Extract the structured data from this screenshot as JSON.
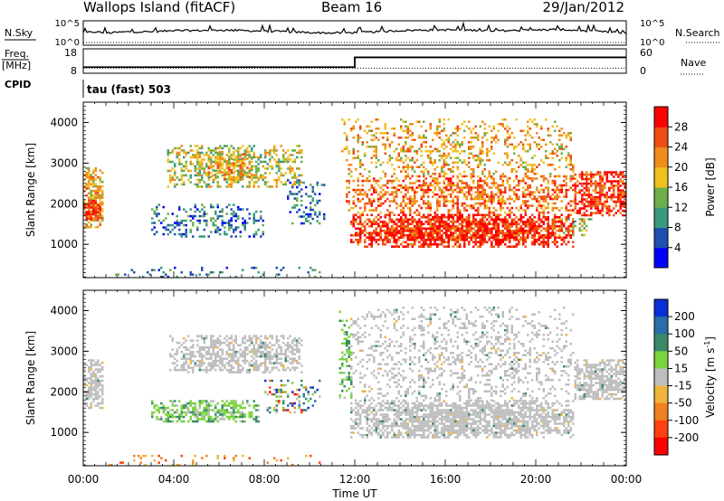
{
  "header": {
    "station": "Wallops Island (fitACF)",
    "beam": "Beam 16",
    "date": "29/Jan/2012"
  },
  "strip_labels": {
    "nsky": "N.Sky",
    "nsearch": "N.Search",
    "freq_top": "Freq.",
    "freq_unit": "[MHz]",
    "cpid": "CPID",
    "nave": "Nave",
    "cpid_value": "tau (fast) 503"
  },
  "strip_ticks": {
    "noise_left": [
      "10^5",
      "10^0"
    ],
    "noise_right": [
      "10^5",
      "10^0"
    ],
    "freq_left": [
      "18",
      "8"
    ],
    "freq_right": [
      "60",
      "0"
    ]
  },
  "chart_data": [
    {
      "type": "line",
      "name": "noise-strip",
      "series": [
        {
          "name": "N.Sky",
          "style": "solid",
          "level_t": [
            0,
            0.5,
            1,
            2,
            3,
            4,
            5,
            6,
            7,
            8,
            9,
            10,
            11,
            12,
            13,
            14,
            15,
            16,
            17,
            18,
            19,
            20,
            21,
            22,
            23,
            24
          ],
          "level": [
            0.5,
            0.55,
            0.5,
            0.55,
            0.55,
            0.6,
            0.6,
            0.62,
            0.6,
            0.58,
            0.55,
            0.52,
            0.5,
            0.52,
            0.55,
            0.6,
            0.62,
            0.63,
            0.62,
            0.6,
            0.6,
            0.62,
            0.65,
            0.6,
            0.55,
            0.5
          ]
        },
        {
          "name": "N.Search",
          "style": "dotted"
        }
      ]
    },
    {
      "type": "line",
      "name": "frequency-nave-strip",
      "series": [
        {
          "name": "Freq",
          "x": [
            0,
            12,
            12,
            24
          ],
          "y": [
            10.5,
            10.5,
            14.5,
            14.5
          ],
          "ylim": [
            8,
            18
          ]
        },
        {
          "name": "Nave",
          "style": "dotted",
          "x": [
            0,
            24
          ],
          "y": [
            8,
            8
          ],
          "ylim": [
            0,
            60
          ]
        }
      ]
    },
    {
      "type": "heatmap",
      "name": "power-panel",
      "xlabel": "",
      "ylabel": "Slant Range [km]",
      "xlim": [
        0,
        24
      ],
      "ylim": [
        180,
        4500
      ],
      "yticks": [
        1000,
        2000,
        3000,
        4000
      ],
      "colorbar": {
        "label": "Power [dB]",
        "range": [
          0,
          32
        ],
        "ticks": [
          4,
          8,
          12,
          16,
          20,
          24,
          28
        ],
        "colors": [
          "#0000ff",
          "#1f4fb0",
          "#3a9a7e",
          "#6dae4a",
          "#f0c020",
          "#f08c1a",
          "#ee4d14",
          "#ff0000"
        ]
      },
      "regions": [
        {
          "t0": 0.0,
          "t1": 0.9,
          "r0": 1450,
          "r1": 2900,
          "value": 20,
          "density": 0.8
        },
        {
          "t0": 0.0,
          "t1": 0.8,
          "r0": 1600,
          "r1": 2100,
          "value": 28,
          "density": 0.9
        },
        {
          "t0": 3.7,
          "t1": 9.7,
          "r0": 2400,
          "r1": 3450,
          "value": 14,
          "density": 0.55
        },
        {
          "t0": 5.5,
          "t1": 7.5,
          "r0": 2600,
          "r1": 3300,
          "value": 20,
          "density": 0.6
        },
        {
          "t0": 3.0,
          "t1": 8.0,
          "r0": 1200,
          "r1": 2000,
          "value": 9,
          "density": 0.35
        },
        {
          "t0": 9.0,
          "t1": 10.7,
          "r0": 1500,
          "r1": 2600,
          "value": 8,
          "density": 0.3
        },
        {
          "t0": 1.0,
          "t1": 10.5,
          "r0": 200,
          "r1": 450,
          "value": 9,
          "density": 0.12
        },
        {
          "t0": 11.4,
          "t1": 21.7,
          "r0": 2600,
          "r1": 4100,
          "value": 20,
          "density": 0.3
        },
        {
          "t0": 11.6,
          "t1": 21.8,
          "r0": 1800,
          "r1": 2700,
          "value": 24,
          "density": 0.55
        },
        {
          "t0": 11.8,
          "t1": 21.7,
          "r0": 950,
          "r1": 1750,
          "value": 28,
          "density": 0.9
        },
        {
          "t0": 21.7,
          "t1": 24.0,
          "r0": 1700,
          "r1": 2800,
          "value": 26,
          "density": 0.8
        },
        {
          "t0": 21.0,
          "t1": 22.5,
          "r0": 1250,
          "r1": 1700,
          "value": 14,
          "density": 0.3
        }
      ]
    },
    {
      "type": "heatmap",
      "name": "velocity-panel",
      "xlabel": "Time UT",
      "ylabel": "Slant Range [km]",
      "xlim": [
        0,
        24
      ],
      "ylim": [
        180,
        4500
      ],
      "yticks": [
        1000,
        2000,
        3000,
        4000
      ],
      "xticks": [
        "00:00",
        "04:00",
        "08:00",
        "12:00",
        "16:00",
        "20:00",
        "00:00"
      ],
      "colorbar": {
        "label": "Velocity [m s",
        "label_sup": "-1",
        "label_end": "]",
        "ticks": [
          "200",
          "100",
          "50",
          "15",
          "-15",
          "-50",
          "-100",
          "-200"
        ],
        "colors": [
          "#0a2fd6",
          "#2a6ea8",
          "#3a8a6a",
          "#7ad43c",
          "#bebebe",
          "#f0b43c",
          "#f08020",
          "#ff4010",
          "#ff0000"
        ]
      },
      "regions": [
        {
          "t0": 0.0,
          "t1": 0.9,
          "r0": 1600,
          "r1": 2800,
          "value": "ground",
          "density": 0.8
        },
        {
          "t0": 3.8,
          "t1": 9.7,
          "r0": 2500,
          "r1": 3400,
          "value": "ground",
          "density": 0.65
        },
        {
          "t0": 3.0,
          "t1": 7.8,
          "r0": 1250,
          "r1": 1800,
          "value": "positive",
          "density": 0.7
        },
        {
          "t0": 8.0,
          "t1": 10.5,
          "r0": 1500,
          "r1": 2300,
          "value": "mixed",
          "density": 0.3
        },
        {
          "t0": 1.0,
          "t1": 10.5,
          "r0": 200,
          "r1": 450,
          "value": "negative",
          "density": 0.15
        },
        {
          "t0": 11.3,
          "t1": 11.9,
          "r0": 1800,
          "r1": 4000,
          "value": "positive",
          "density": 0.45
        },
        {
          "t0": 11.8,
          "t1": 21.7,
          "r0": 900,
          "r1": 1800,
          "value": "ground",
          "density": 0.85
        },
        {
          "t0": 11.8,
          "t1": 21.7,
          "r0": 1800,
          "r1": 4100,
          "value": "ground",
          "density": 0.3
        },
        {
          "t0": 21.7,
          "t1": 24.0,
          "r0": 1800,
          "r1": 2800,
          "value": "ground",
          "density": 0.8
        }
      ]
    }
  ],
  "x_axis_label": "Time UT",
  "x_ticks": [
    "00:00",
    "04:00",
    "08:00",
    "12:00",
    "16:00",
    "20:00",
    "00:00"
  ]
}
